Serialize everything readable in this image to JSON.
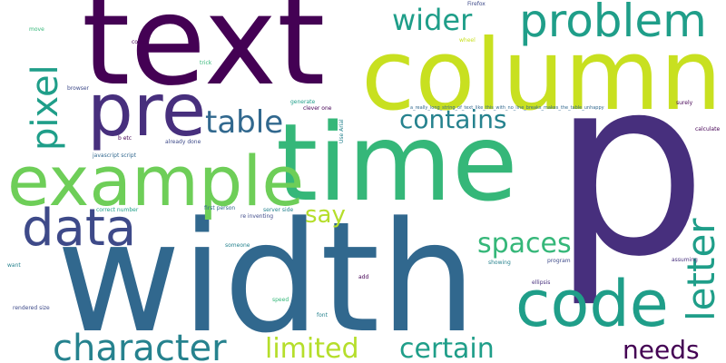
{
  "palette": {
    "dark_purple": "#440154",
    "purple": "#472f7d",
    "indigo": "#3e4a89",
    "blue": "#31688e",
    "teal_blue": "#26828e",
    "teal": "#1f9e89",
    "green_teal": "#35b779",
    "green": "#6ece58",
    "light_green": "#b5de2b",
    "yellow_green": "#c8e020",
    "background": "#ffffff"
  },
  "words": {
    "text": "text",
    "column": "column",
    "p": "p",
    "time": "time",
    "width": "width",
    "example": "example",
    "pre": "pre",
    "problem": "problem",
    "code": "code",
    "pixel": "pixel",
    "data": "data",
    "letter": "letter",
    "character": "character",
    "table": "table",
    "contains": "contains",
    "wider": "wider",
    "spaces": "spaces",
    "limited": "limited",
    "certain": "certain",
    "needs": "needs",
    "say": "say",
    "firefox": "Firefox",
    "move": "move",
    "come": "come",
    "trick": "trick",
    "wheel": "wheel",
    "browser": "browser",
    "generate": "generate",
    "clever_one": "clever one",
    "use_arial": "Use Arial",
    "long_string": "a_really_long_string_of_text_like_this_with_no_line_breaks_makes_the_table_unhappy",
    "surely": "surely",
    "b_etc": "b etc",
    "already_done": "already done",
    "calculate": "calculate",
    "javascript_script": "javascript script",
    "correct_number": "correct number",
    "first_person": "first person",
    "server_side": "server side",
    "re_inventing": "re inventing",
    "someone": "someone",
    "showing": "showing",
    "program": "program",
    "assuming": "assuming",
    "want": "want",
    "add": "add",
    "ellipsis": "ellipsis",
    "rendered_size": "rendered size",
    "speed": "speed",
    "font": "font"
  }
}
